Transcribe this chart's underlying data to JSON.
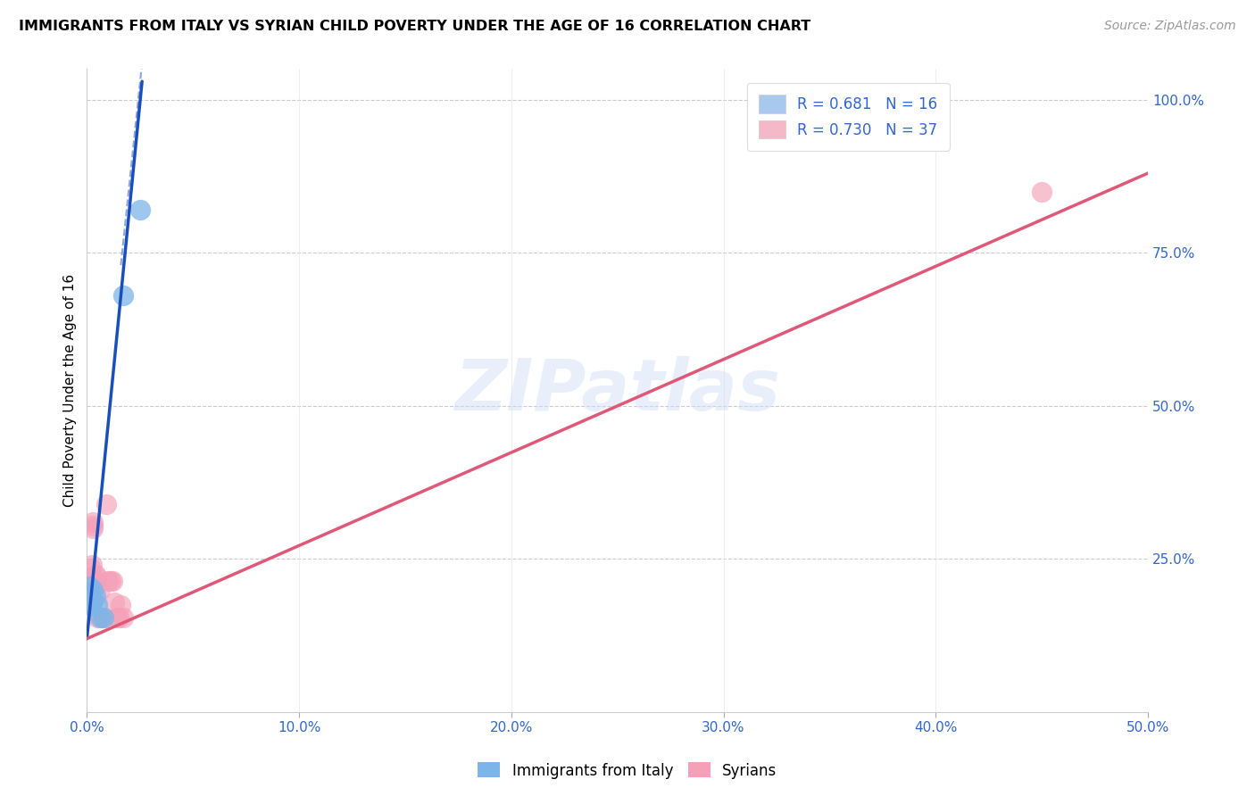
{
  "title": "IMMIGRANTS FROM ITALY VS SYRIAN CHILD POVERTY UNDER THE AGE OF 16 CORRELATION CHART",
  "source": "Source: ZipAtlas.com",
  "ylabel": "Child Poverty Under the Age of 16",
  "xlim": [
    0.0,
    0.5
  ],
  "ylim": [
    0.0,
    1.05
  ],
  "xticks": [
    0.0,
    0.1,
    0.2,
    0.3,
    0.4,
    0.5
  ],
  "yticks": [
    0.0,
    0.25,
    0.5,
    0.75,
    1.0
  ],
  "xticklabels": [
    "0.0%",
    "10.0%",
    "20.0%",
    "30.0%",
    "40.0%",
    "50.0%"
  ],
  "yticklabels": [
    "",
    "25.0%",
    "50.0%",
    "75.0%",
    "100.0%"
  ],
  "legend_entries": [
    {
      "label": "R = 0.681   N = 16",
      "facecolor": "#a8c8f0"
    },
    {
      "label": "R = 0.730   N = 37",
      "facecolor": "#f5b8c8"
    }
  ],
  "watermark_text": "ZIPatlas",
  "italy_color": "#7eb5e8",
  "syria_color": "#f5a0b8",
  "italy_line_color": "#1a4fbb",
  "syria_line_color": "#e05878",
  "italy_scatter": [
    [
      0.0005,
      0.195
    ],
    [
      0.001,
      0.195
    ],
    [
      0.001,
      0.205
    ],
    [
      0.0015,
      0.185
    ],
    [
      0.0015,
      0.175
    ],
    [
      0.002,
      0.175
    ],
    [
      0.002,
      0.18
    ],
    [
      0.0025,
      0.185
    ],
    [
      0.003,
      0.2
    ],
    [
      0.003,
      0.18
    ],
    [
      0.004,
      0.19
    ],
    [
      0.005,
      0.175
    ],
    [
      0.006,
      0.155
    ],
    [
      0.008,
      0.155
    ],
    [
      0.017,
      0.68
    ],
    [
      0.025,
      0.82
    ]
  ],
  "syria_scatter": [
    [
      0.0002,
      0.19
    ],
    [
      0.0003,
      0.2
    ],
    [
      0.0005,
      0.18
    ],
    [
      0.0005,
      0.195
    ],
    [
      0.001,
      0.185
    ],
    [
      0.001,
      0.2
    ],
    [
      0.001,
      0.21
    ],
    [
      0.0012,
      0.18
    ],
    [
      0.0015,
      0.2
    ],
    [
      0.0015,
      0.185
    ],
    [
      0.002,
      0.195
    ],
    [
      0.002,
      0.215
    ],
    [
      0.002,
      0.22
    ],
    [
      0.002,
      0.235
    ],
    [
      0.0025,
      0.24
    ],
    [
      0.003,
      0.3
    ],
    [
      0.003,
      0.31
    ],
    [
      0.003,
      0.305
    ],
    [
      0.0035,
      0.215
    ],
    [
      0.004,
      0.225
    ],
    [
      0.004,
      0.215
    ],
    [
      0.005,
      0.22
    ],
    [
      0.005,
      0.21
    ],
    [
      0.005,
      0.155
    ],
    [
      0.006,
      0.2
    ],
    [
      0.007,
      0.155
    ],
    [
      0.008,
      0.155
    ],
    [
      0.009,
      0.34
    ],
    [
      0.01,
      0.215
    ],
    [
      0.011,
      0.215
    ],
    [
      0.012,
      0.215
    ],
    [
      0.013,
      0.18
    ],
    [
      0.014,
      0.155
    ],
    [
      0.015,
      0.155
    ],
    [
      0.016,
      0.175
    ],
    [
      0.017,
      0.155
    ],
    [
      0.45,
      0.85
    ]
  ],
  "italy_line_solid": {
    "x0": 0.0,
    "y0": 0.12,
    "x1": 0.026,
    "y1": 1.03
  },
  "italy_line_dashed": {
    "x0": 0.016,
    "y0": 0.73,
    "x1": 0.026,
    "y1": 1.06
  },
  "syria_line": {
    "x0": 0.0,
    "y0": 0.12,
    "x1": 0.5,
    "y1": 0.88
  }
}
